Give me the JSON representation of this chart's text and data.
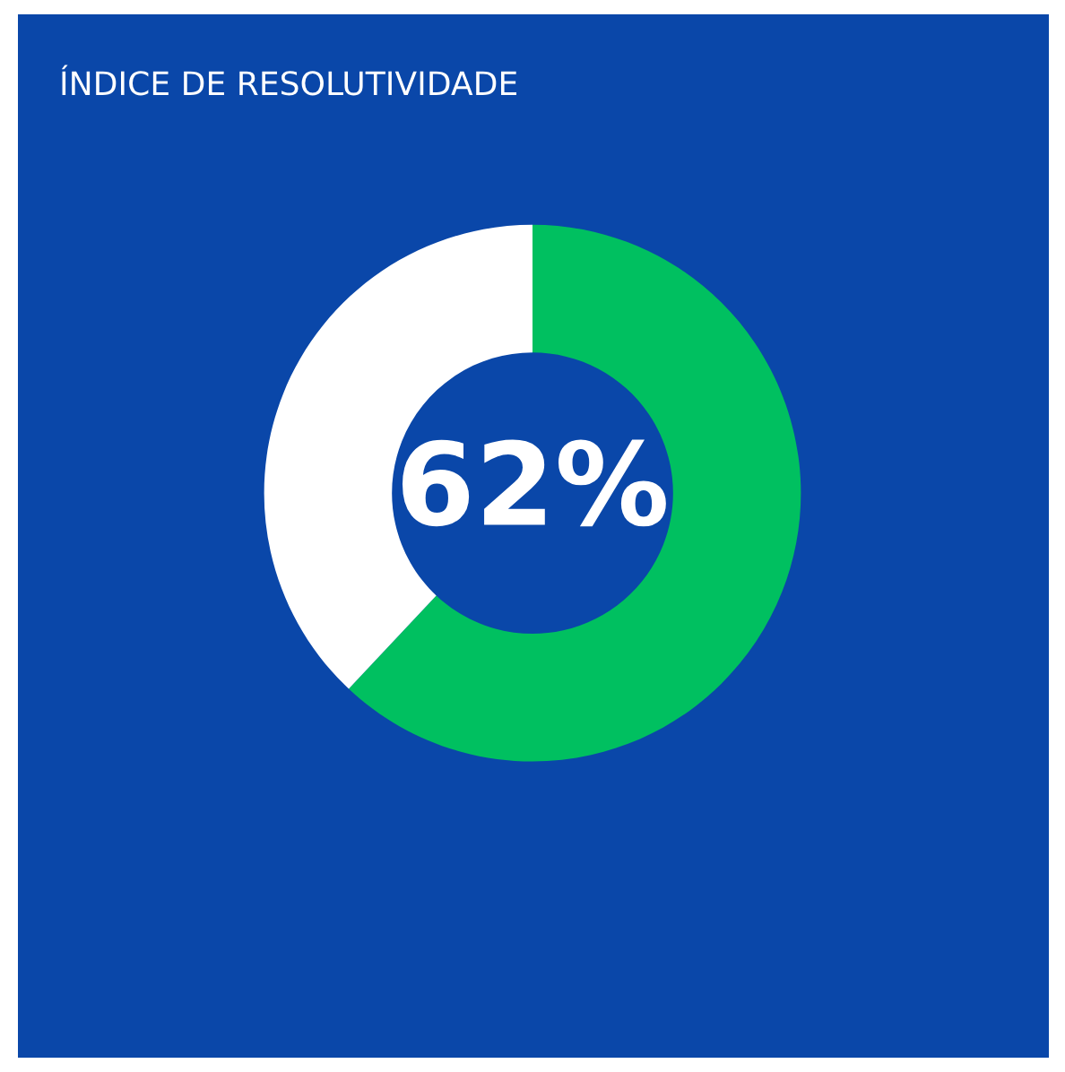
{
  "chart_data": {
    "type": "donut",
    "title": "ÍNDICE DE RESOLUTIVIDADE",
    "categories": [
      null,
      null
    ],
    "values": [
      62,
      38
    ],
    "colors": [
      "#00c060",
      "#ffffff"
    ],
    "value_labels": [
      "62%",
      null
    ],
    "legend": false
  }
}
